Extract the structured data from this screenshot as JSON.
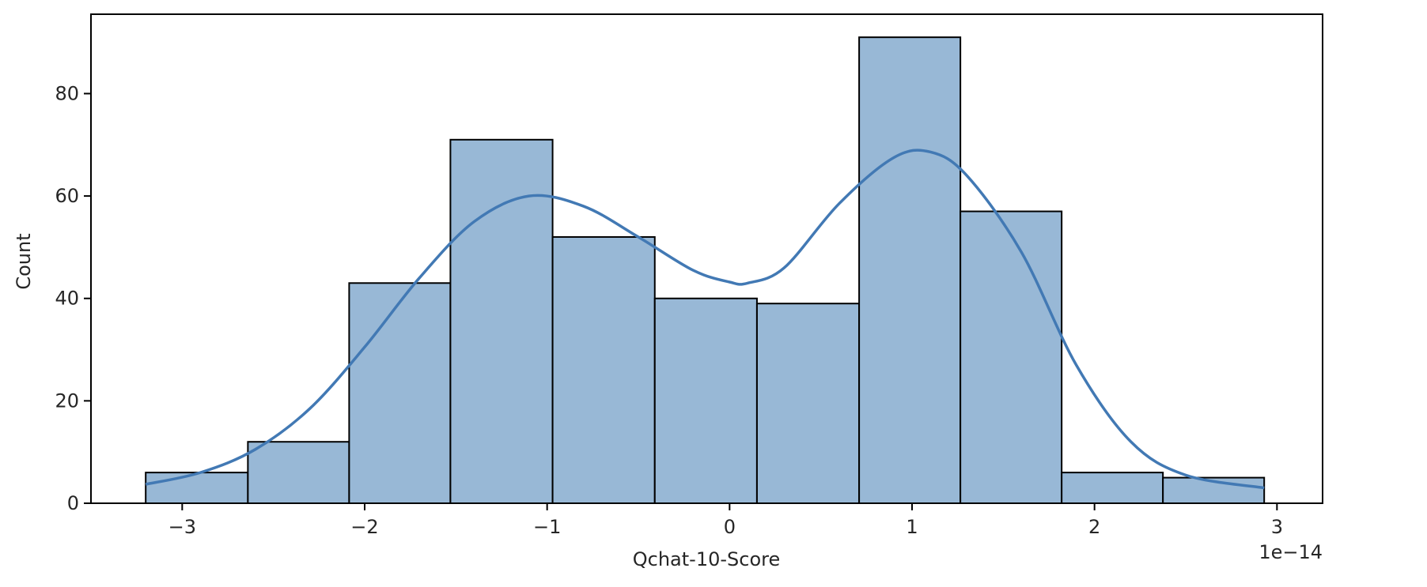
{
  "chart_data": {
    "type": "bar",
    "subtype": "histogram with kde line",
    "title": "",
    "xlabel": "Qchat-10-Score",
    "ylabel": "Count",
    "x_offset_label": "1e−14",
    "x_scale_multiplier": 1e-14,
    "xlim": [
      -3.5,
      3.25
    ],
    "ylim": [
      0,
      95.5
    ],
    "x_ticks": [
      -3,
      -2,
      -1,
      0,
      1,
      2,
      3
    ],
    "x_tick_labels": [
      "−3",
      "−2",
      "−1",
      "0",
      "1",
      "2",
      "3"
    ],
    "y_ticks": [
      0,
      20,
      40,
      60,
      80
    ],
    "y_tick_labels": [
      "0",
      "20",
      "40",
      "60",
      "80"
    ],
    "grid": false,
    "legend": null,
    "bins": [
      {
        "x0": -3.2,
        "x1": -2.64,
        "count": 6
      },
      {
        "x0": -2.64,
        "x1": -2.085,
        "count": 12
      },
      {
        "x0": -2.085,
        "x1": -1.53,
        "count": 43
      },
      {
        "x0": -1.53,
        "x1": -0.97,
        "count": 71
      },
      {
        "x0": -0.97,
        "x1": -0.41,
        "count": 52
      },
      {
        "x0": -0.41,
        "x1": 0.15,
        "count": 40
      },
      {
        "x0": 0.15,
        "x1": 0.71,
        "count": 39
      },
      {
        "x0": 0.71,
        "x1": 1.265,
        "count": 91
      },
      {
        "x0": 1.265,
        "x1": 1.82,
        "count": 57
      },
      {
        "x0": 1.82,
        "x1": 2.375,
        "count": 6
      },
      {
        "x0": 2.375,
        "x1": 2.93,
        "count": 5
      }
    ],
    "kde": {
      "x": [
        -3.2,
        -2.9,
        -2.6,
        -2.3,
        -2.0,
        -1.7,
        -1.4,
        -1.1,
        -0.8,
        -0.5,
        -0.2,
        0.0,
        0.1,
        0.3,
        0.6,
        0.9,
        1.1,
        1.3,
        1.6,
        1.9,
        2.2,
        2.5,
        2.93
      ],
      "y": [
        3.7,
        6.0,
        10.5,
        18.5,
        30.5,
        44.0,
        55.0,
        60.0,
        58.0,
        52.0,
        45.5,
        43.2,
        43.0,
        46.0,
        58.5,
        67.5,
        68.6,
        64.0,
        49.0,
        27.0,
        12.0,
        5.5,
        3.0
      ]
    },
    "colors": {
      "bar_fill": "#98b8d6",
      "bar_edge": "#000000",
      "kde_line": "#4279b4",
      "axes": "#000000",
      "text": "#262626"
    }
  }
}
